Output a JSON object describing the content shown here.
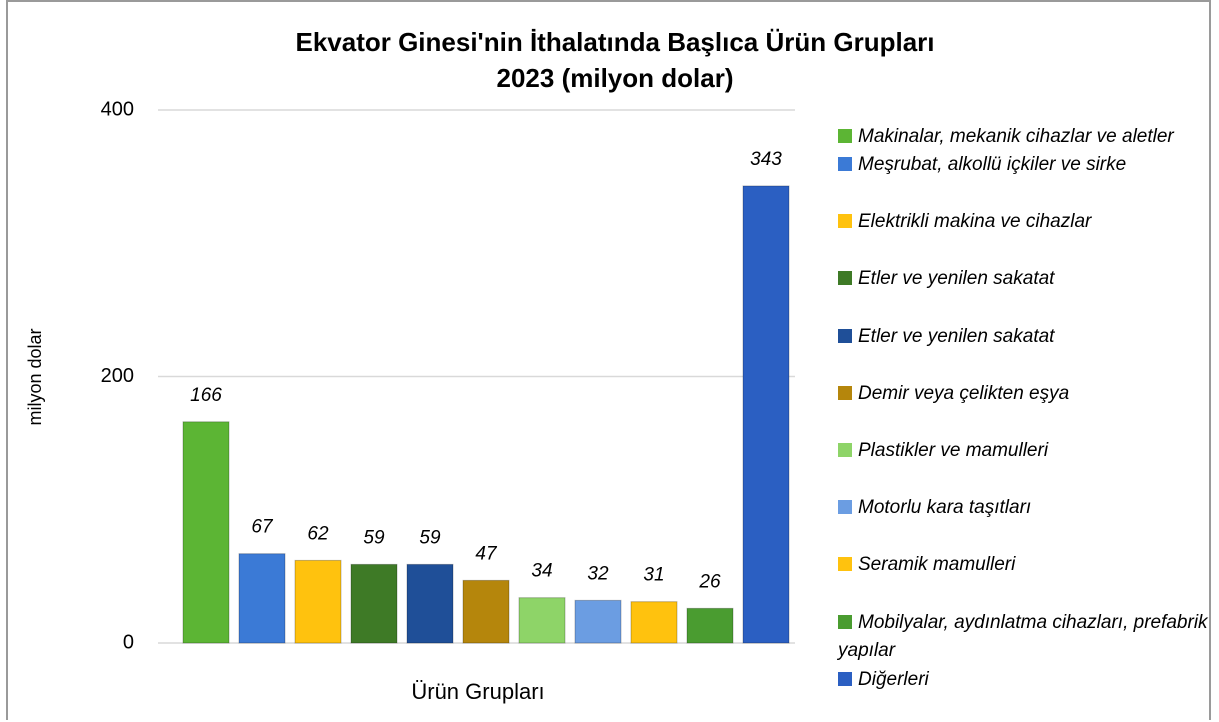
{
  "chart_data": {
    "type": "bar",
    "title": "Ekvator Ginesi'nin İthalatında Başlıca Ürün Grupları",
    "subtitle": "2023 (milyon dolar)",
    "x_label": "Ürün Grupları",
    "y_label": "milyon dolar",
    "categories": [
      "Makinalar, mekanik cihazlar ve aletler",
      "Meşrubat, alkollü içkiler ve sirke",
      "Elektrikli makina ve cihazlar",
      "Etler ve yenilen sakatat",
      "Etler ve yenilen sakatat",
      "Demir veya çelikten eşya",
      "Plastikler ve mamulleri",
      "Motorlu kara taşıtları",
      "Seramik mamulleri",
      "Mobilyalar, aydınlatma cihazları, prefabrik yapılar",
      "Diğerleri"
    ],
    "values": [
      166,
      67,
      62,
      59,
      59,
      47,
      34,
      32,
      31,
      26,
      343
    ],
    "colors": [
      "#5cb534",
      "#3b7ad6",
      "#ffc20e",
      "#3e7a26",
      "#1f4f98",
      "#b5860c",
      "#8ed468",
      "#6b9de2",
      "#ffc20e",
      "#4a9c30",
      "#2b5fc2"
    ],
    "ylim": [
      0,
      400
    ],
    "yticks": [
      0,
      200,
      400
    ],
    "grid": true
  }
}
